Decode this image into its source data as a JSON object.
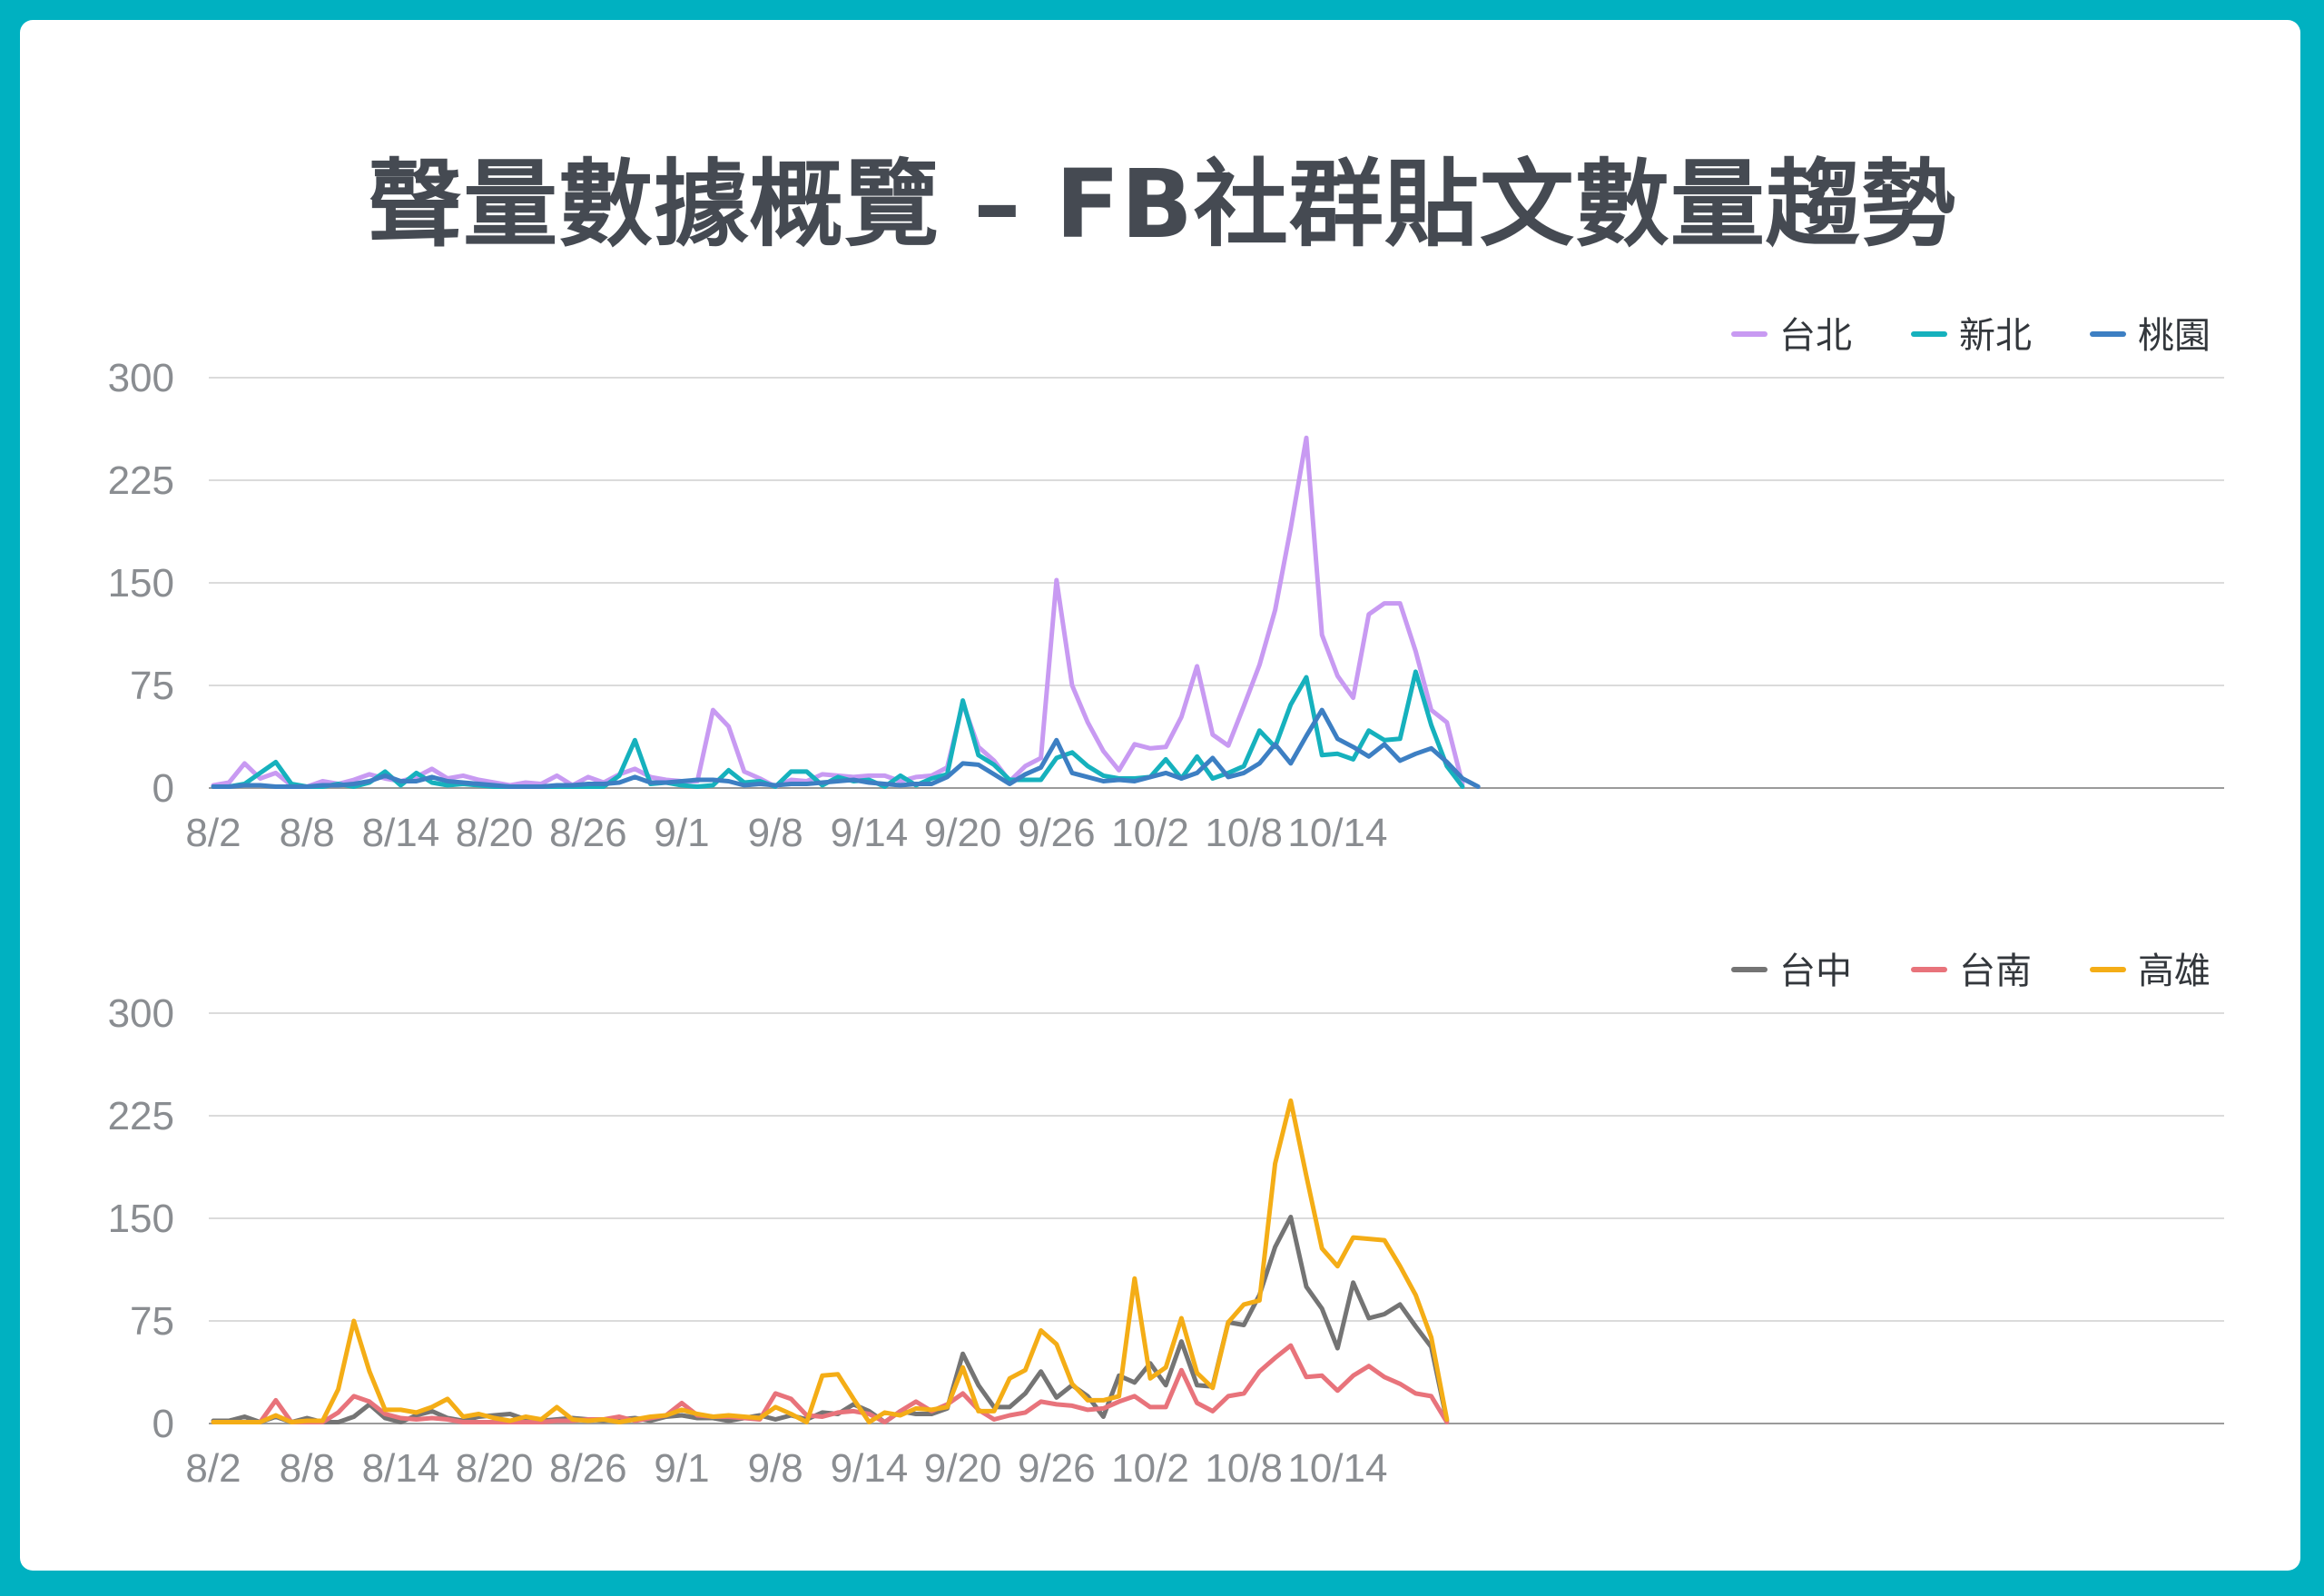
{
  "title": "聲量數據概覽 – FB社群貼文數量趨勢",
  "chart_data": [
    {
      "type": "line",
      "ylim": [
        0,
        300
      ],
      "yticks": [
        "0",
        "75",
        "150",
        "225",
        "300"
      ],
      "xtick_labels": [
        "8/2",
        "8/8",
        "8/14",
        "8/20",
        "8/26",
        "9/1",
        "9/8",
        "9/14",
        "9/20",
        "9/26",
        "10/2",
        "10/8",
        "10/14"
      ],
      "grid": true,
      "legend_position": "top-right",
      "series": [
        {
          "name": "台北",
          "color": "#c89af2",
          "values": [
            2,
            4,
            18,
            7,
            11,
            2,
            1,
            5,
            3,
            6,
            10,
            7,
            5,
            8,
            14,
            7,
            9,
            6,
            4,
            2,
            4,
            3,
            9,
            2,
            8,
            4,
            10,
            14,
            8,
            6,
            5,
            5,
            57,
            45,
            12,
            7,
            1,
            6,
            5,
            10,
            9,
            8,
            9,
            9,
            5,
            8,
            9,
            15,
            62,
            30,
            20,
            5,
            16,
            22,
            152,
            75,
            48,
            27,
            13,
            32,
            29,
            30,
            52,
            89,
            39,
            31,
            60,
            90,
            130,
            190,
            256,
            112,
            82,
            66,
            127,
            135,
            135,
            100,
            57,
            48,
            3
          ]
        },
        {
          "name": "新北",
          "color": "#16b1bd",
          "values": [
            1,
            1,
            3,
            11,
            19,
            3,
            1,
            1,
            3,
            1,
            4,
            12,
            2,
            11,
            4,
            2,
            3,
            2,
            1,
            1,
            1,
            1,
            1,
            1,
            1,
            1,
            9,
            35,
            3,
            4,
            2,
            1,
            2,
            13,
            4,
            5,
            1,
            12,
            12,
            2,
            8,
            5,
            6,
            1,
            9,
            2,
            7,
            10,
            64,
            24,
            17,
            6,
            6,
            6,
            22,
            26,
            16,
            9,
            7,
            7,
            8,
            21,
            7,
            23,
            7,
            11,
            16,
            42,
            30,
            61,
            81,
            24,
            25,
            21,
            42,
            35,
            36,
            85,
            46,
            16,
            1
          ]
        },
        {
          "name": "桃園",
          "color": "#3d7fc3",
          "values": [
            1,
            1,
            2,
            2,
            1,
            1,
            1,
            2,
            2,
            3,
            5,
            9,
            5,
            5,
            8,
            5,
            4,
            3,
            2,
            1,
            1,
            1,
            2,
            2,
            3,
            3,
            4,
            8,
            4,
            4,
            5,
            6,
            6,
            5,
            2,
            3,
            2,
            3,
            3,
            4,
            5,
            6,
            4,
            3,
            2,
            3,
            3,
            8,
            18,
            17,
            10,
            3,
            10,
            15,
            35,
            11,
            8,
            5,
            6,
            5,
            8,
            11,
            7,
            11,
            22,
            8,
            11,
            18,
            32,
            18,
            38,
            57,
            36,
            30,
            23,
            32,
            20,
            25,
            29,
            19,
            7,
            1
          ]
        }
      ]
    },
    {
      "type": "line",
      "ylim": [
        0,
        300
      ],
      "yticks": [
        "0",
        "75",
        "150",
        "225",
        "300"
      ],
      "xtick_labels": [
        "8/2",
        "8/8",
        "8/14",
        "8/20",
        "8/26",
        "9/1",
        "9/8",
        "9/14",
        "9/20",
        "9/26",
        "10/2",
        "10/8",
        "10/14"
      ],
      "grid": true,
      "legend_position": "top-right",
      "series": [
        {
          "name": "台中",
          "color": "#747474",
          "values": [
            2,
            2,
            5,
            1,
            5,
            1,
            4,
            1,
            1,
            5,
            14,
            4,
            1,
            6,
            9,
            4,
            2,
            5,
            6,
            7,
            3,
            2,
            3,
            4,
            3,
            2,
            3,
            4,
            2,
            5,
            6,
            4,
            4,
            2,
            4,
            6,
            3,
            6,
            3,
            8,
            7,
            14,
            9,
            1,
            9,
            7,
            7,
            11,
            51,
            28,
            12,
            12,
            22,
            38,
            19,
            28,
            20,
            5,
            35,
            30,
            44,
            28,
            60,
            28,
            27,
            74,
            72,
            94,
            129,
            151,
            100,
            84,
            55,
            103,
            77,
            80,
            87,
            71,
            56,
            2
          ]
        },
        {
          "name": "台南",
          "color": "#e8737b",
          "values": [
            1,
            1,
            1,
            1,
            17,
            1,
            1,
            1,
            8,
            20,
            16,
            7,
            4,
            3,
            4,
            3,
            1,
            1,
            1,
            1,
            1,
            1,
            2,
            2,
            3,
            3,
            5,
            2,
            4,
            6,
            15,
            6,
            5,
            5,
            4,
            3,
            22,
            18,
            6,
            5,
            8,
            9,
            7,
            1,
            9,
            16,
            9,
            14,
            22,
            10,
            3,
            6,
            8,
            16,
            14,
            13,
            10,
            11,
            16,
            20,
            12,
            12,
            39,
            15,
            9,
            20,
            22,
            38,
            48,
            57,
            34,
            35,
            24,
            35,
            42,
            34,
            29,
            22,
            20,
            1
          ]
        },
        {
          "name": "高雄",
          "color": "#f4ad16",
          "values": [
            1,
            1,
            1,
            1,
            6,
            1,
            2,
            2,
            25,
            75,
            38,
            10,
            10,
            8,
            12,
            18,
            5,
            7,
            4,
            2,
            5,
            3,
            12,
            3,
            2,
            3,
            1,
            3,
            5,
            6,
            10,
            7,
            5,
            6,
            5,
            4,
            12,
            7,
            1,
            35,
            36,
            18,
            1,
            8,
            6,
            11,
            10,
            12,
            41,
            9,
            9,
            33,
            39,
            68,
            58,
            29,
            17,
            17,
            20,
            106,
            33,
            41,
            77,
            37,
            26,
            74,
            87,
            90,
            190,
            236,
            181,
            128,
            115,
            136,
            135,
            134,
            115,
            94,
            63,
            3
          ]
        }
      ]
    }
  ]
}
